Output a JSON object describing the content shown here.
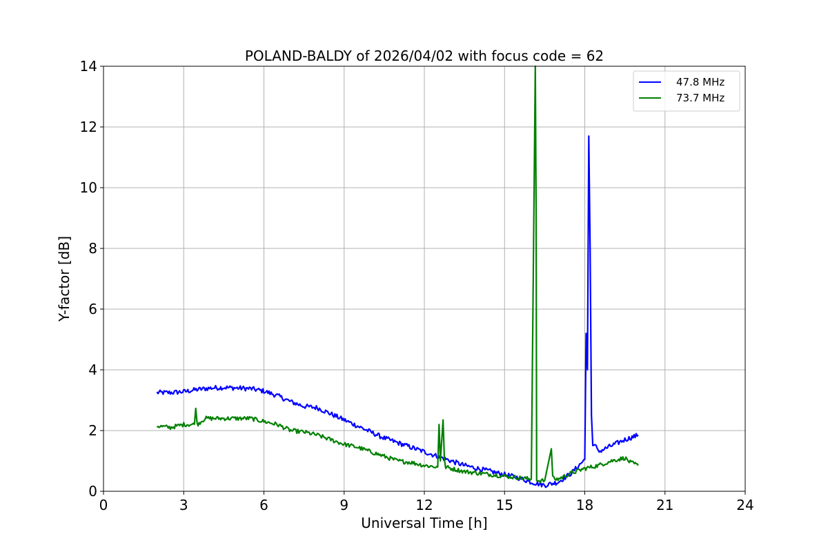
{
  "chart_data": {
    "type": "line",
    "title": "POLAND-BALDY of 2026/04/02 with focus code = 62",
    "xlabel": "Universal Time [h]",
    "ylabel": "Y-factor [dB]",
    "xlim": [
      0,
      24
    ],
    "ylim": [
      0,
      14
    ],
    "xticks": [
      0,
      3,
      6,
      9,
      12,
      15,
      18,
      21,
      24
    ],
    "yticks": [
      0,
      2,
      4,
      6,
      8,
      10,
      12,
      14
    ],
    "grid": true,
    "legend_position": "top-right",
    "series": [
      {
        "name": "47.8 MHz",
        "color": "#0000ff",
        "noise": 0.08,
        "x": [
          2.0,
          2.5,
          3.0,
          3.5,
          4.0,
          4.5,
          5.0,
          5.5,
          6.0,
          6.5,
          7.0,
          7.5,
          8.0,
          8.5,
          9.0,
          9.5,
          10.0,
          10.5,
          11.0,
          11.5,
          12.0,
          12.5,
          13.0,
          13.5,
          14.0,
          14.5,
          15.0,
          15.5,
          16.0,
          16.5,
          17.0,
          17.5,
          18.0,
          18.05,
          18.1,
          18.15,
          18.2,
          18.25,
          18.3,
          18.35,
          18.5,
          19.0,
          19.5,
          20.0
        ],
        "y": [
          3.25,
          3.25,
          3.28,
          3.35,
          3.4,
          3.42,
          3.4,
          3.38,
          3.3,
          3.15,
          2.95,
          2.8,
          2.75,
          2.55,
          2.35,
          2.15,
          1.95,
          1.75,
          1.6,
          1.45,
          1.3,
          1.15,
          1.0,
          0.85,
          0.75,
          0.65,
          0.55,
          0.45,
          0.3,
          0.2,
          0.3,
          0.6,
          1.05,
          5.2,
          4.0,
          11.7,
          8.0,
          2.5,
          1.5,
          1.6,
          1.3,
          1.5,
          1.7,
          1.85
        ]
      },
      {
        "name": "73.7 MHz",
        "color": "#008000",
        "noise": 0.07,
        "x": [
          2.0,
          2.5,
          3.0,
          3.4,
          3.45,
          3.5,
          3.8,
          4.0,
          4.5,
          5.0,
          5.5,
          6.0,
          6.5,
          7.0,
          7.5,
          8.0,
          8.5,
          9.0,
          9.5,
          10.0,
          10.5,
          11.0,
          11.5,
          12.0,
          12.5,
          12.55,
          12.6,
          12.7,
          12.75,
          12.8,
          13.0,
          13.5,
          14.0,
          14.5,
          15.0,
          15.5,
          16.0,
          16.15,
          16.18,
          16.2,
          16.25,
          16.5,
          16.75,
          16.8,
          16.85,
          17.0,
          17.5,
          18.0,
          18.5,
          19.0,
          19.5,
          19.7,
          20.0
        ],
        "y": [
          2.15,
          2.1,
          2.2,
          2.2,
          2.8,
          2.2,
          2.4,
          2.4,
          2.4,
          2.4,
          2.4,
          2.3,
          2.2,
          2.0,
          1.95,
          1.85,
          1.7,
          1.55,
          1.45,
          1.3,
          1.15,
          1.0,
          0.95,
          0.85,
          0.8,
          2.2,
          1.0,
          2.35,
          1.0,
          0.8,
          0.75,
          0.65,
          0.6,
          0.55,
          0.5,
          0.45,
          0.4,
          14.0,
          9.3,
          0.4,
          0.35,
          0.35,
          1.4,
          0.5,
          0.4,
          0.4,
          0.6,
          0.75,
          0.85,
          1.0,
          1.1,
          0.95,
          0.85
        ]
      }
    ]
  }
}
